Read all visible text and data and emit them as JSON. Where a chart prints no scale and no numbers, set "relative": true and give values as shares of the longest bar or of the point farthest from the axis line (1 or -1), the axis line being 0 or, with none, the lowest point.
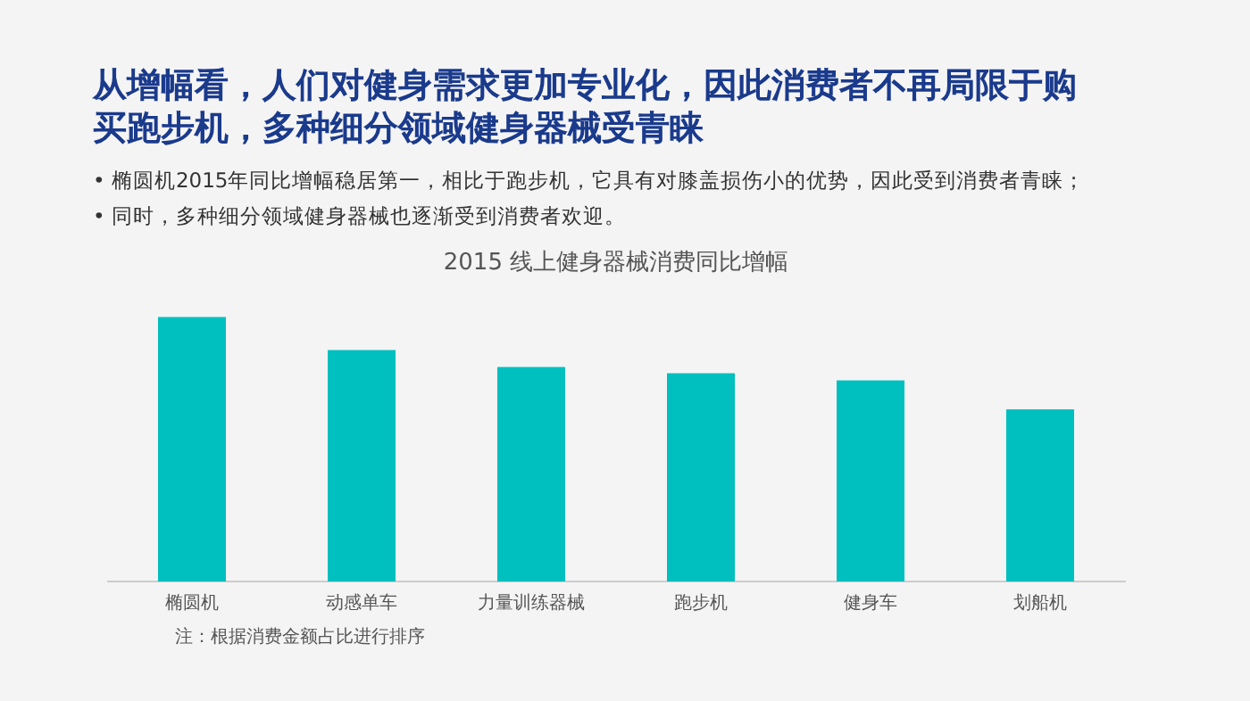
{
  "chart_data": {
    "type": "bar",
    "title": "从增幅看，人们对健身需求更加专业化，因此消费者不再局限于购买跑步机，多种细分领域健身器械受青睐",
    "subtitle": "2015 线上健身器械消费同比增幅",
    "categories": [
      "椭圆机",
      "动感单车",
      "力量训练器械",
      "跑步机",
      "健身车",
      "划船机"
    ],
    "values": [
      1,
      0.874,
      0.81,
      0.787,
      0.76,
      0.65
    ],
    "color": "#00bfbf",
    "relative": true,
    "grid": false,
    "legend": false,
    "annotations": [
      "• 椭圆机2015年同比增幅稳居第一，相比于跑步机，它具有对膝盖损伤小的优势，因此受到消费者青睐；",
      "• 同时，多种细分领域健身器械也逐渐受到消费者欢迎。",
      "注：根据消费金额占比进行排序"
    ]
  }
}
